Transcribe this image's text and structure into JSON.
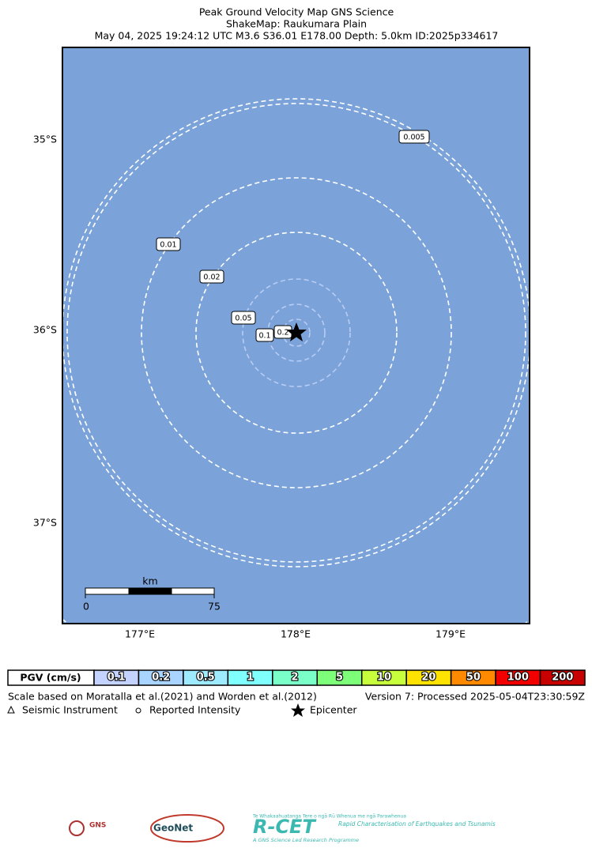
{
  "title": [
    "Peak Ground Velocity Map GNS Science",
    "ShakeMap: Raukumara Plain",
    "May 04, 2025 19:24:12 UTC M3.6 S36.01 E178.00 Depth: 5.0km ID:2025p334617"
  ],
  "map": {
    "lat_ticks": [
      "35°S",
      "36°S",
      "37°S"
    ],
    "lon_ticks": [
      "177°E",
      "178°E",
      "179°E"
    ],
    "contour_labels": [
      0.005,
      0.01,
      0.02,
      0.05,
      0.1,
      0.2
    ],
    "scale_bar": {
      "unit": "km",
      "start": 0,
      "end": 75
    }
  },
  "colorbar": {
    "label": "PGV (cm/s)",
    "values": [
      0.1,
      0.2,
      0.5,
      1,
      2,
      5,
      10,
      20,
      50,
      100,
      200
    ],
    "colors": [
      "#c3d2ff",
      "#a8d4ff",
      "#9eeaff",
      "#80ffff",
      "#7affc8",
      "#7dff7a",
      "#c8ff3c",
      "#ffe300",
      "#ff8a00",
      "#f20000",
      "#c80000"
    ]
  },
  "notes": {
    "scale": "Scale based on Moratalla et al.(2021) and Worden et al.(2012)",
    "version": "Version 7: Processed 2025-05-04T23:30:59Z"
  },
  "legend": [
    "Seismic Instrument",
    "Reported Intensity",
    "Epicenter"
  ],
  "logos": {
    "gns": "GNS",
    "geonet": "GeoNet",
    "rcet": "R-CET",
    "rcet_tagline": "Te Whakaahuatanga Tere o ngā Rū Whenua me ngā Parawhenua",
    "rcet_name": "Rapid Characterisation of Earthquakes and Tsunamis",
    "rcet_note": "A GNS Science Led Research Programme"
  }
}
